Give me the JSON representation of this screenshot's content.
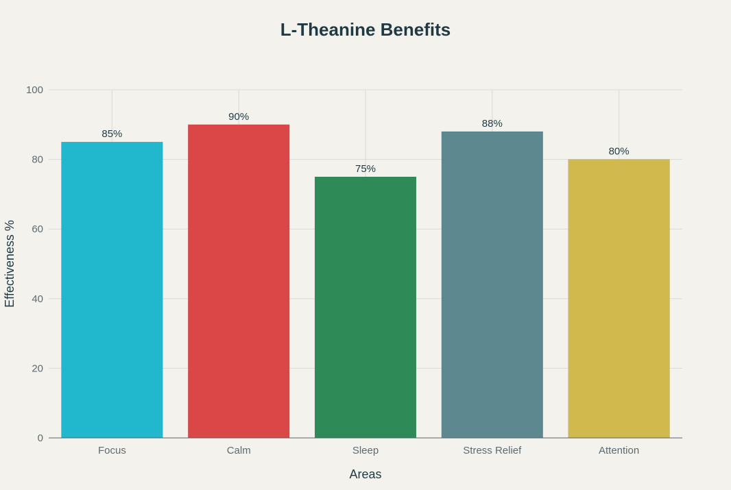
{
  "chart_data": {
    "type": "bar",
    "title": "L-Theanine Benefits",
    "xlabel": "Areas",
    "ylabel": "Effectiveness %",
    "categories": [
      "Focus",
      "Calm",
      "Sleep",
      "Stress Relief",
      "Attention"
    ],
    "values": [
      85,
      90,
      75,
      88,
      80
    ],
    "data_labels": [
      "85%",
      "90%",
      "75%",
      "88%",
      "80%"
    ],
    "colors": [
      "#21b8cd",
      "#db4646",
      "#2e8a57",
      "#5d8890",
      "#d1b94d"
    ],
    "ylim": [
      0,
      100
    ],
    "yticks": [
      0,
      20,
      40,
      60,
      80,
      100
    ],
    "ytick_labels": [
      "0",
      "20",
      "40",
      "60",
      "80",
      "100"
    ],
    "grid": true,
    "legend": "none"
  }
}
